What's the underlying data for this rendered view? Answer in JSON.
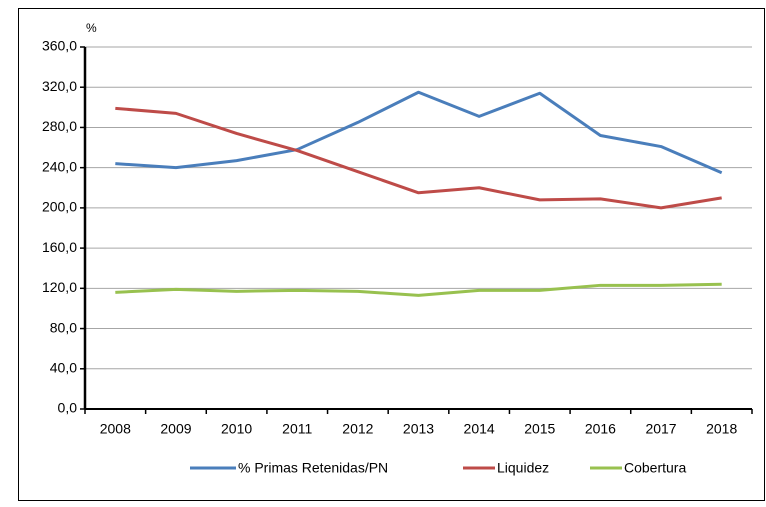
{
  "chart_data": {
    "type": "line",
    "y_label": "%",
    "categories": [
      "2008",
      "2009",
      "2010",
      "2011",
      "2012",
      "2013",
      "2014",
      "2015",
      "2016",
      "2017",
      "2018"
    ],
    "series": [
      {
        "name": "% Primas Retenidas/PN",
        "color": "#4a7ebb",
        "values": [
          244,
          240,
          247,
          258,
          285,
          315,
          291,
          314,
          272,
          261,
          235
        ]
      },
      {
        "name": "Liquidez",
        "color": "#be4b48",
        "values": [
          299,
          294,
          274,
          257,
          236,
          215,
          220,
          208,
          209,
          200,
          210
        ]
      },
      {
        "name": "Cobertura",
        "color": "#98c14f",
        "values": [
          116,
          119,
          117,
          118,
          117,
          113,
          118,
          118,
          123,
          123,
          124
        ]
      }
    ],
    "ylim": [
      0,
      360
    ],
    "yticks": [
      {
        "value": 0,
        "label": "0,0"
      },
      {
        "value": 40,
        "label": "40,0"
      },
      {
        "value": 80,
        "label": "80,0"
      },
      {
        "value": 120,
        "label": "120,0"
      },
      {
        "value": 160,
        "label": "160,0"
      },
      {
        "value": 200,
        "label": "200,0"
      },
      {
        "value": 240,
        "label": "240,0"
      },
      {
        "value": 280,
        "label": "280,0"
      },
      {
        "value": 320,
        "label": "320,0"
      },
      {
        "value": 360,
        "label": "360,0"
      }
    ],
    "grid": true
  }
}
